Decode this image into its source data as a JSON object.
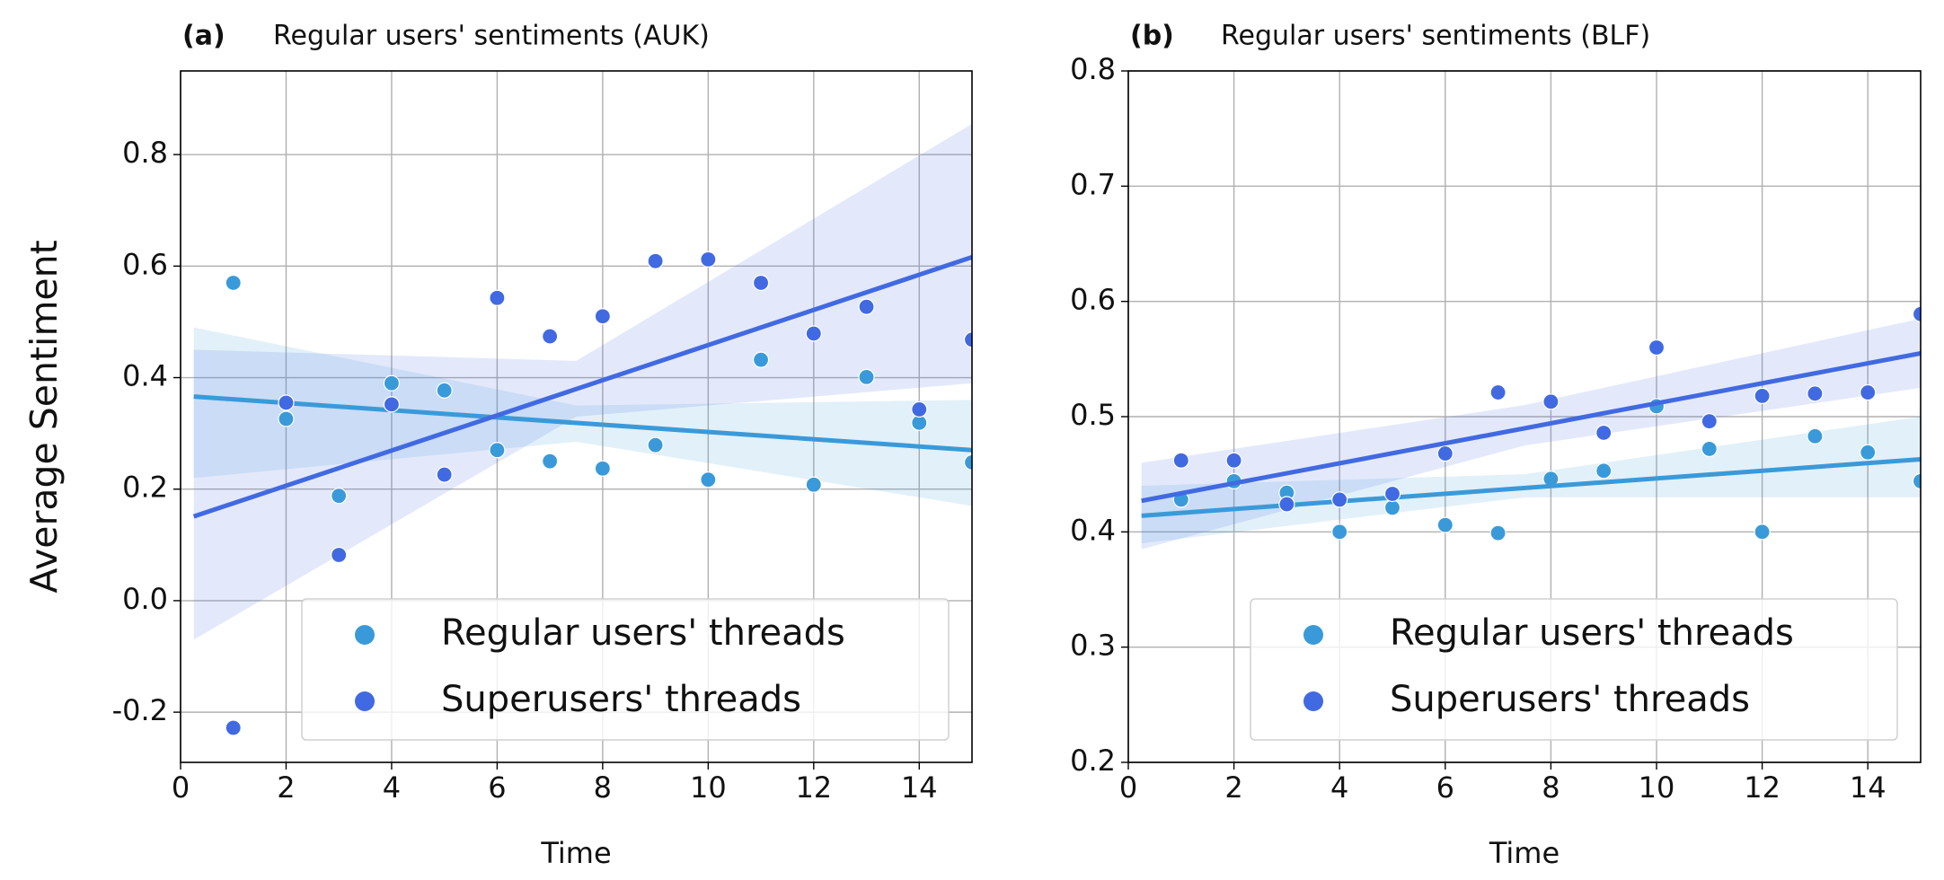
{
  "chart_data": [
    {
      "type": "scatter",
      "label": "(a)",
      "title": "Regular users' sentiments (AUK)",
      "xlabel": "Time",
      "ylabel": "Average Sentiment",
      "x": [
        1,
        2,
        3,
        4,
        5,
        6,
        7,
        8,
        9,
        10,
        11,
        12,
        13,
        14,
        15
      ],
      "xlim": [
        0,
        15
      ],
      "xticks": [
        0,
        2,
        4,
        6,
        8,
        10,
        12,
        14
      ],
      "ylim": [
        -0.29,
        0.95
      ],
      "yticks": [
        -0.2,
        {
          "value": 0,
          "label": "0.0"
        },
        0.2,
        0.4,
        0.6,
        0.8
      ],
      "grid": true,
      "legend": "lower right",
      "series": [
        {
          "name": "Regular users' threads",
          "color": "#3a9ad9",
          "values": [
            0.57,
            0.326,
            0.188,
            0.39,
            0.377,
            0.27,
            0.25,
            0.237,
            0.279,
            0.217,
            0.432,
            0.208,
            0.401,
            0.319,
            0.248
          ],
          "trend": {
            "x": [
              0.25,
              15
            ],
            "values": [
              0.366,
              0.27
            ]
          },
          "band": {
            "x": [
              0.25,
              7.5,
              15
            ],
            "lower": [
              0.22,
              0.285,
              0.17
            ],
            "upper": [
              0.49,
              0.35,
              0.36
            ]
          }
        },
        {
          "name": "Superusers' threads",
          "color": "#4169e1",
          "values": [
            -0.228,
            0.355,
            0.082,
            0.352,
            0.226,
            0.543,
            0.474,
            0.51,
            0.609,
            0.612,
            0.57,
            0.479,
            0.527,
            0.343,
            0.468
          ],
          "trend": {
            "x": [
              0.25,
              15
            ],
            "values": [
              0.151,
              0.616
            ]
          },
          "band": {
            "x": [
              0.25,
              7.5,
              15
            ],
            "lower": [
              -0.07,
              0.33,
              0.39
            ],
            "upper": [
              0.45,
              0.43,
              0.855
            ]
          }
        }
      ]
    },
    {
      "type": "scatter",
      "label": "(b)",
      "title": "Regular users' sentiments (BLF)",
      "xlabel": "Time",
      "x": [
        1,
        2,
        3,
        4,
        5,
        6,
        7,
        8,
        9,
        10,
        11,
        12,
        13,
        14,
        15
      ],
      "xlim": [
        0,
        15
      ],
      "xticks": [
        0,
        2,
        4,
        6,
        8,
        10,
        12,
        14
      ],
      "ylim": [
        0.2,
        0.8
      ],
      "yticks": [
        0.2,
        0.3,
        0.4,
        0.5,
        0.6,
        0.7,
        0.8
      ],
      "grid": true,
      "legend": "lower right",
      "series": [
        {
          "name": "Regular users' threads",
          "color": "#3a9ad9",
          "values": [
            0.428,
            0.444,
            0.434,
            0.4,
            0.421,
            0.406,
            0.399,
            0.446,
            0.453,
            0.509,
            0.472,
            0.4,
            0.483,
            0.469,
            0.444
          ],
          "trend": {
            "x": [
              0.25,
              15
            ],
            "values": [
              0.414,
              0.463
            ]
          },
          "band": {
            "x": [
              0.25,
              7.5,
              15
            ],
            "lower": [
              0.39,
              0.43,
              0.43
            ],
            "upper": [
              0.44,
              0.45,
              0.5
            ]
          }
        },
        {
          "name": "Superusers' threads",
          "color": "#4169e1",
          "values": [
            0.462,
            0.462,
            0.424,
            0.428,
            0.433,
            0.468,
            0.521,
            0.513,
            0.486,
            0.56,
            0.496,
            0.518,
            0.52,
            0.521,
            0.589
          ],
          "trend": {
            "x": [
              0.25,
              15
            ],
            "values": [
              0.427,
              0.555
            ]
          },
          "band": {
            "x": [
              0.25,
              7.5,
              15
            ],
            "lower": [
              0.385,
              0.475,
              0.525
            ],
            "upper": [
              0.46,
              0.51,
              0.585
            ]
          }
        }
      ]
    }
  ]
}
